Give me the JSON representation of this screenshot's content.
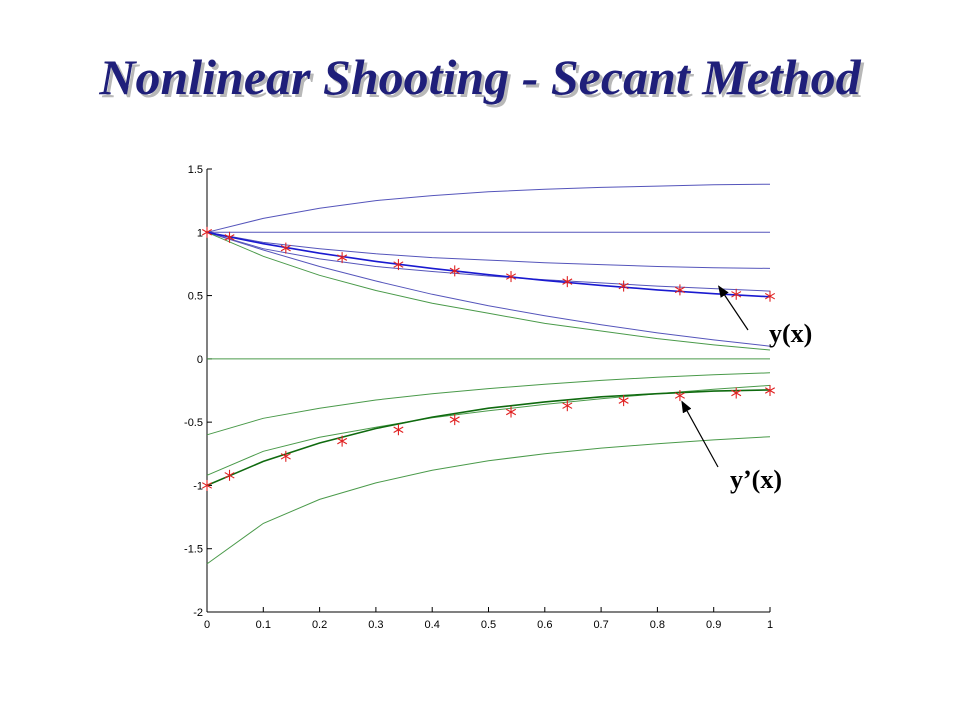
{
  "slide": {
    "title": "Nonlinear Shooting - Secant Method"
  },
  "colors": {
    "y_curves": "#5555bb",
    "dy_curves": "#4a9a4a",
    "solution_y": "#1a1ad0",
    "solution_dy": "#0f6a0f",
    "markers": "#e02020",
    "axes": "#000000"
  },
  "chart_data": {
    "type": "line",
    "title": "",
    "xlabel": "",
    "ylabel": "",
    "xlim": [
      0,
      1
    ],
    "ylim": [
      -2,
      1.5
    ],
    "grid": false,
    "x_ticks": [
      "0",
      "0.1",
      "0.2",
      "0.3",
      "0.4",
      "0.5",
      "0.6",
      "0.7",
      "0.8",
      "0.9",
      "1"
    ],
    "y_ticks": [
      "-2",
      "-1.5",
      "-1",
      "-0.5",
      "0",
      "0.5",
      "1",
      "1.5"
    ],
    "x": [
      0,
      0.1,
      0.2,
      0.3,
      0.4,
      0.5,
      0.6,
      0.7,
      0.8,
      0.9,
      1.0
    ],
    "series": [
      {
        "group": "y",
        "values": [
          1.0,
          1.11,
          1.19,
          1.25,
          1.29,
          1.32,
          1.34,
          1.355,
          1.365,
          1.375,
          1.38
        ]
      },
      {
        "group": "y",
        "values": [
          1.0,
          1.0,
          1.0,
          1.0,
          1.0,
          1.0,
          1.0,
          1.0,
          1.0,
          1.0,
          1.0
        ]
      },
      {
        "group": "y",
        "values": [
          1.0,
          0.92,
          0.87,
          0.83,
          0.8,
          0.78,
          0.76,
          0.745,
          0.73,
          0.72,
          0.715
        ]
      },
      {
        "group": "y",
        "values": [
          1.0,
          0.87,
          0.79,
          0.73,
          0.69,
          0.655,
          0.625,
          0.6,
          0.575,
          0.555,
          0.535
        ]
      },
      {
        "group": "y",
        "values": [
          1.0,
          0.86,
          0.73,
          0.615,
          0.51,
          0.42,
          0.34,
          0.27,
          0.205,
          0.15,
          0.1
        ]
      },
      {
        "group": "y'",
        "values": [
          1.0,
          0.81,
          0.66,
          0.54,
          0.44,
          0.36,
          0.28,
          0.22,
          0.16,
          0.11,
          0.07
        ]
      },
      {
        "group": "y'",
        "values": [
          0.0,
          0.0,
          0.0,
          0.0,
          0.0,
          0.0,
          0.0,
          0.0,
          0.0,
          0.0,
          0.0
        ]
      },
      {
        "group": "y'",
        "values": [
          -0.6,
          -0.47,
          -0.39,
          -0.325,
          -0.275,
          -0.235,
          -0.2,
          -0.17,
          -0.145,
          -0.125,
          -0.11
        ]
      },
      {
        "group": "y'",
        "values": [
          -0.92,
          -0.73,
          -0.62,
          -0.54,
          -0.465,
          -0.41,
          -0.36,
          -0.315,
          -0.275,
          -0.24,
          -0.21
        ]
      },
      {
        "group": "y'",
        "values": [
          -1.62,
          -1.3,
          -1.11,
          -0.98,
          -0.88,
          -0.805,
          -0.75,
          -0.705,
          -0.67,
          -0.64,
          -0.615
        ]
      }
    ],
    "solution": [
      {
        "label": "y(x)",
        "values": [
          1.0,
          0.91,
          0.835,
          0.77,
          0.715,
          0.665,
          0.62,
          0.58,
          0.545,
          0.515,
          0.49
        ]
      },
      {
        "label": "y’(x)",
        "values": [
          -1.0,
          -0.81,
          -0.665,
          -0.55,
          -0.46,
          -0.39,
          -0.34,
          -0.3,
          -0.275,
          -0.255,
          -0.245
        ]
      }
    ],
    "markers": {
      "y": [
        {
          "x": 0.0,
          "y": 1.0
        },
        {
          "x": 0.04,
          "y": 0.96
        },
        {
          "x": 0.14,
          "y": 0.875
        },
        {
          "x": 0.24,
          "y": 0.8
        },
        {
          "x": 0.34,
          "y": 0.745
        },
        {
          "x": 0.44,
          "y": 0.695
        },
        {
          "x": 0.54,
          "y": 0.65
        },
        {
          "x": 0.64,
          "y": 0.61
        },
        {
          "x": 0.74,
          "y": 0.575
        },
        {
          "x": 0.84,
          "y": 0.545
        },
        {
          "x": 0.94,
          "y": 0.51
        },
        {
          "x": 1.0,
          "y": 0.495
        }
      ],
      "dy": [
        {
          "x": 0.0,
          "y": -1.0
        },
        {
          "x": 0.04,
          "y": -0.92
        },
        {
          "x": 0.14,
          "y": -0.77
        },
        {
          "x": 0.24,
          "y": -0.65
        },
        {
          "x": 0.34,
          "y": -0.56
        },
        {
          "x": 0.44,
          "y": -0.48
        },
        {
          "x": 0.54,
          "y": -0.42
        },
        {
          "x": 0.64,
          "y": -0.37
        },
        {
          "x": 0.74,
          "y": -0.33
        },
        {
          "x": 0.84,
          "y": -0.29
        },
        {
          "x": 0.94,
          "y": -0.27
        },
        {
          "x": 1.0,
          "y": -0.25
        }
      ]
    },
    "annotations": [
      {
        "text": "y(x)",
        "points_to": {
          "x": 0.9,
          "y": 0.55
        }
      },
      {
        "text": "y’(x)",
        "points_to": {
          "x": 0.84,
          "y": -0.29
        }
      }
    ]
  }
}
